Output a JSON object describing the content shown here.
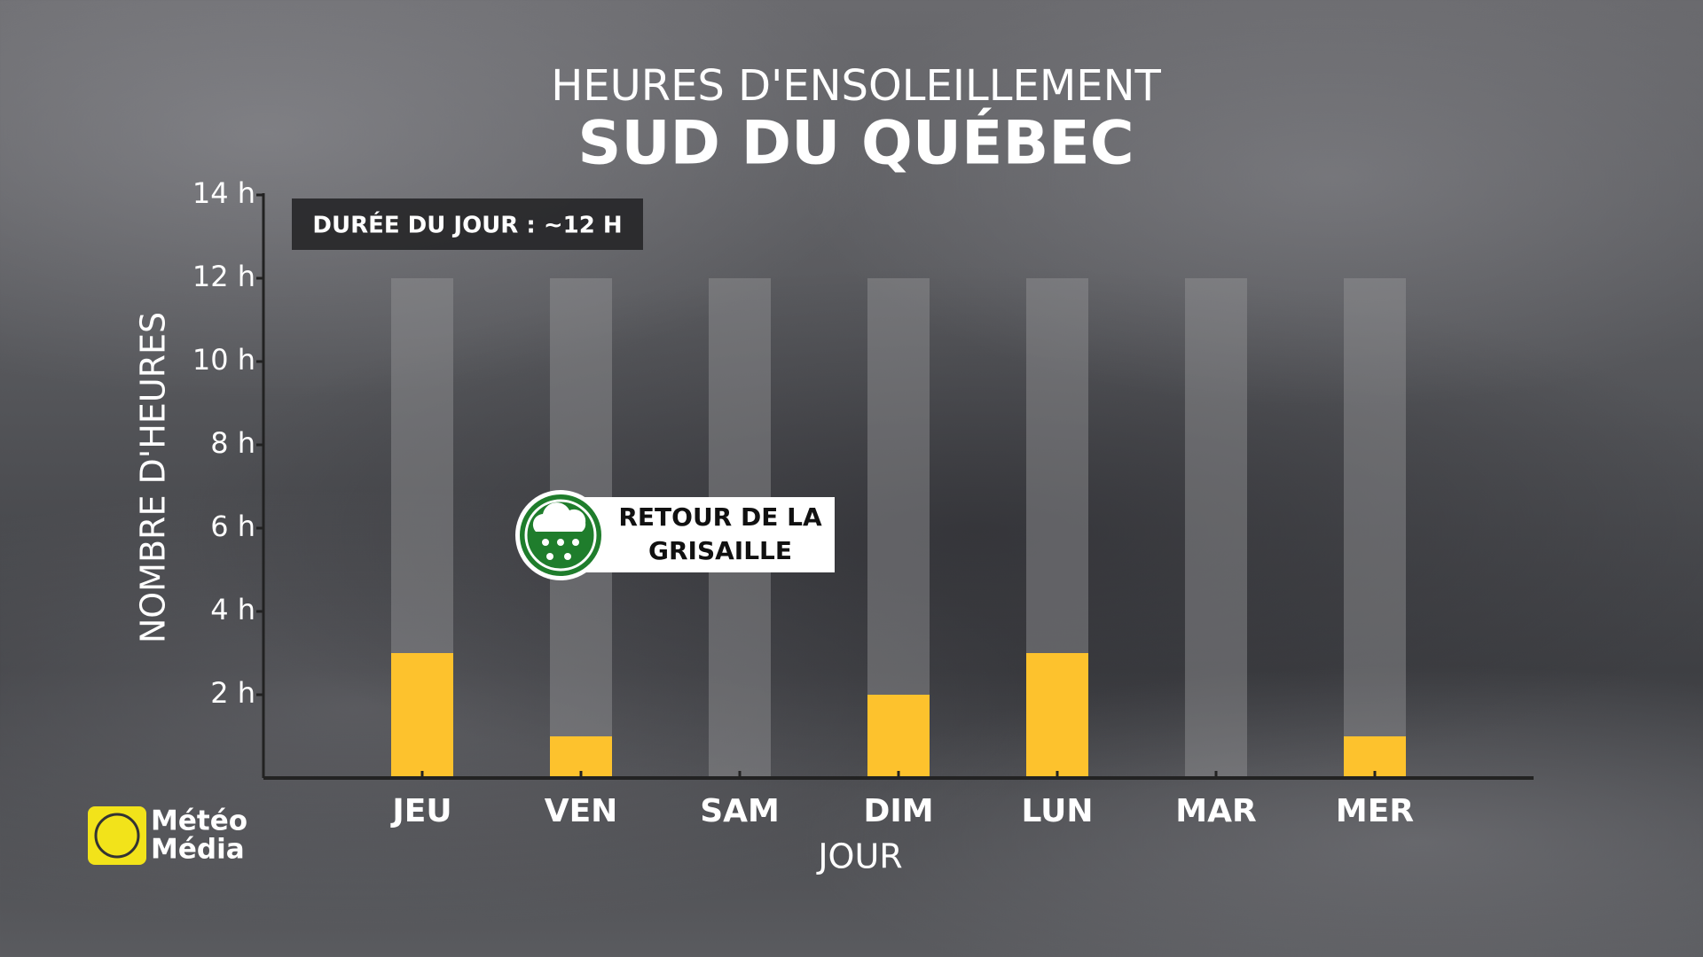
{
  "chart_data": {
    "type": "bar",
    "title": "HEURES D'ENSOLEILLEMENT",
    "subtitle": "SUD DU QUÉBEC",
    "x_label": "JOUR",
    "y_label": "NOMBRE D'HEURES",
    "categories": [
      "JEU",
      "VEN",
      "SAM",
      "DIM",
      "LUN",
      "MAR",
      "MER"
    ],
    "values": [
      3,
      1,
      0,
      2,
      3,
      0,
      1
    ],
    "color": "#fdc22d",
    "daylight_values": [
      12,
      12,
      12,
      12,
      12,
      12,
      12
    ],
    "daylight_color": "rgba(150,150,152,0.45)",
    "ylim": [
      0,
      14
    ],
    "yticks": [
      {
        "value": 2,
        "label": "2 h"
      },
      {
        "value": 4,
        "label": "4 h"
      },
      {
        "value": 6,
        "label": "6 h"
      },
      {
        "value": 8,
        "label": "8 h"
      },
      {
        "value": 10,
        "label": "10 h"
      },
      {
        "value": 12,
        "label": "12 h"
      },
      {
        "value": 14,
        "label": "14 h"
      }
    ],
    "grid": false,
    "annotations": {
      "day_length": "DURÉE DU JOUR : ~12 H",
      "callout_lines": [
        "RETOUR DE LA",
        "GRISAILLE"
      ]
    }
  },
  "logo": {
    "lines": [
      "Météo",
      "Média"
    ]
  }
}
